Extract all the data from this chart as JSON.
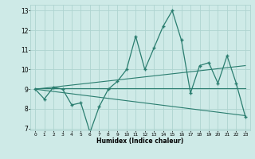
{
  "xlabel": "Humidex (Indice chaleur)",
  "ylabel": "",
  "bg_color": "#ceeae7",
  "grid_color": "#aed4d0",
  "line_color": "#2a7d6f",
  "xlim": [
    -0.5,
    23.5
  ],
  "ylim": [
    6.9,
    13.3
  ],
  "yticks": [
    7,
    8,
    9,
    10,
    11,
    12,
    13
  ],
  "xticks": [
    0,
    1,
    2,
    3,
    4,
    5,
    6,
    7,
    8,
    9,
    10,
    11,
    12,
    13,
    14,
    15,
    16,
    17,
    18,
    19,
    20,
    21,
    22,
    23
  ],
  "main_x": [
    0,
    1,
    2,
    3,
    4,
    5,
    6,
    7,
    8,
    9,
    10,
    11,
    12,
    13,
    14,
    15,
    16,
    17,
    18,
    19,
    20,
    21,
    22,
    23
  ],
  "main_y": [
    9.0,
    8.5,
    9.1,
    9.0,
    8.2,
    8.3,
    6.8,
    8.1,
    9.0,
    9.4,
    10.0,
    11.7,
    10.0,
    11.1,
    12.2,
    13.0,
    11.5,
    8.8,
    10.2,
    10.35,
    9.3,
    10.7,
    9.3,
    7.6
  ],
  "trend1_x": [
    0,
    23
  ],
  "trend1_y": [
    9.0,
    10.2
  ],
  "trend2_x": [
    0,
    23
  ],
  "trend2_y": [
    9.05,
    9.05
  ],
  "trend3_x": [
    0,
    23
  ],
  "trend3_y": [
    9.0,
    7.65
  ]
}
